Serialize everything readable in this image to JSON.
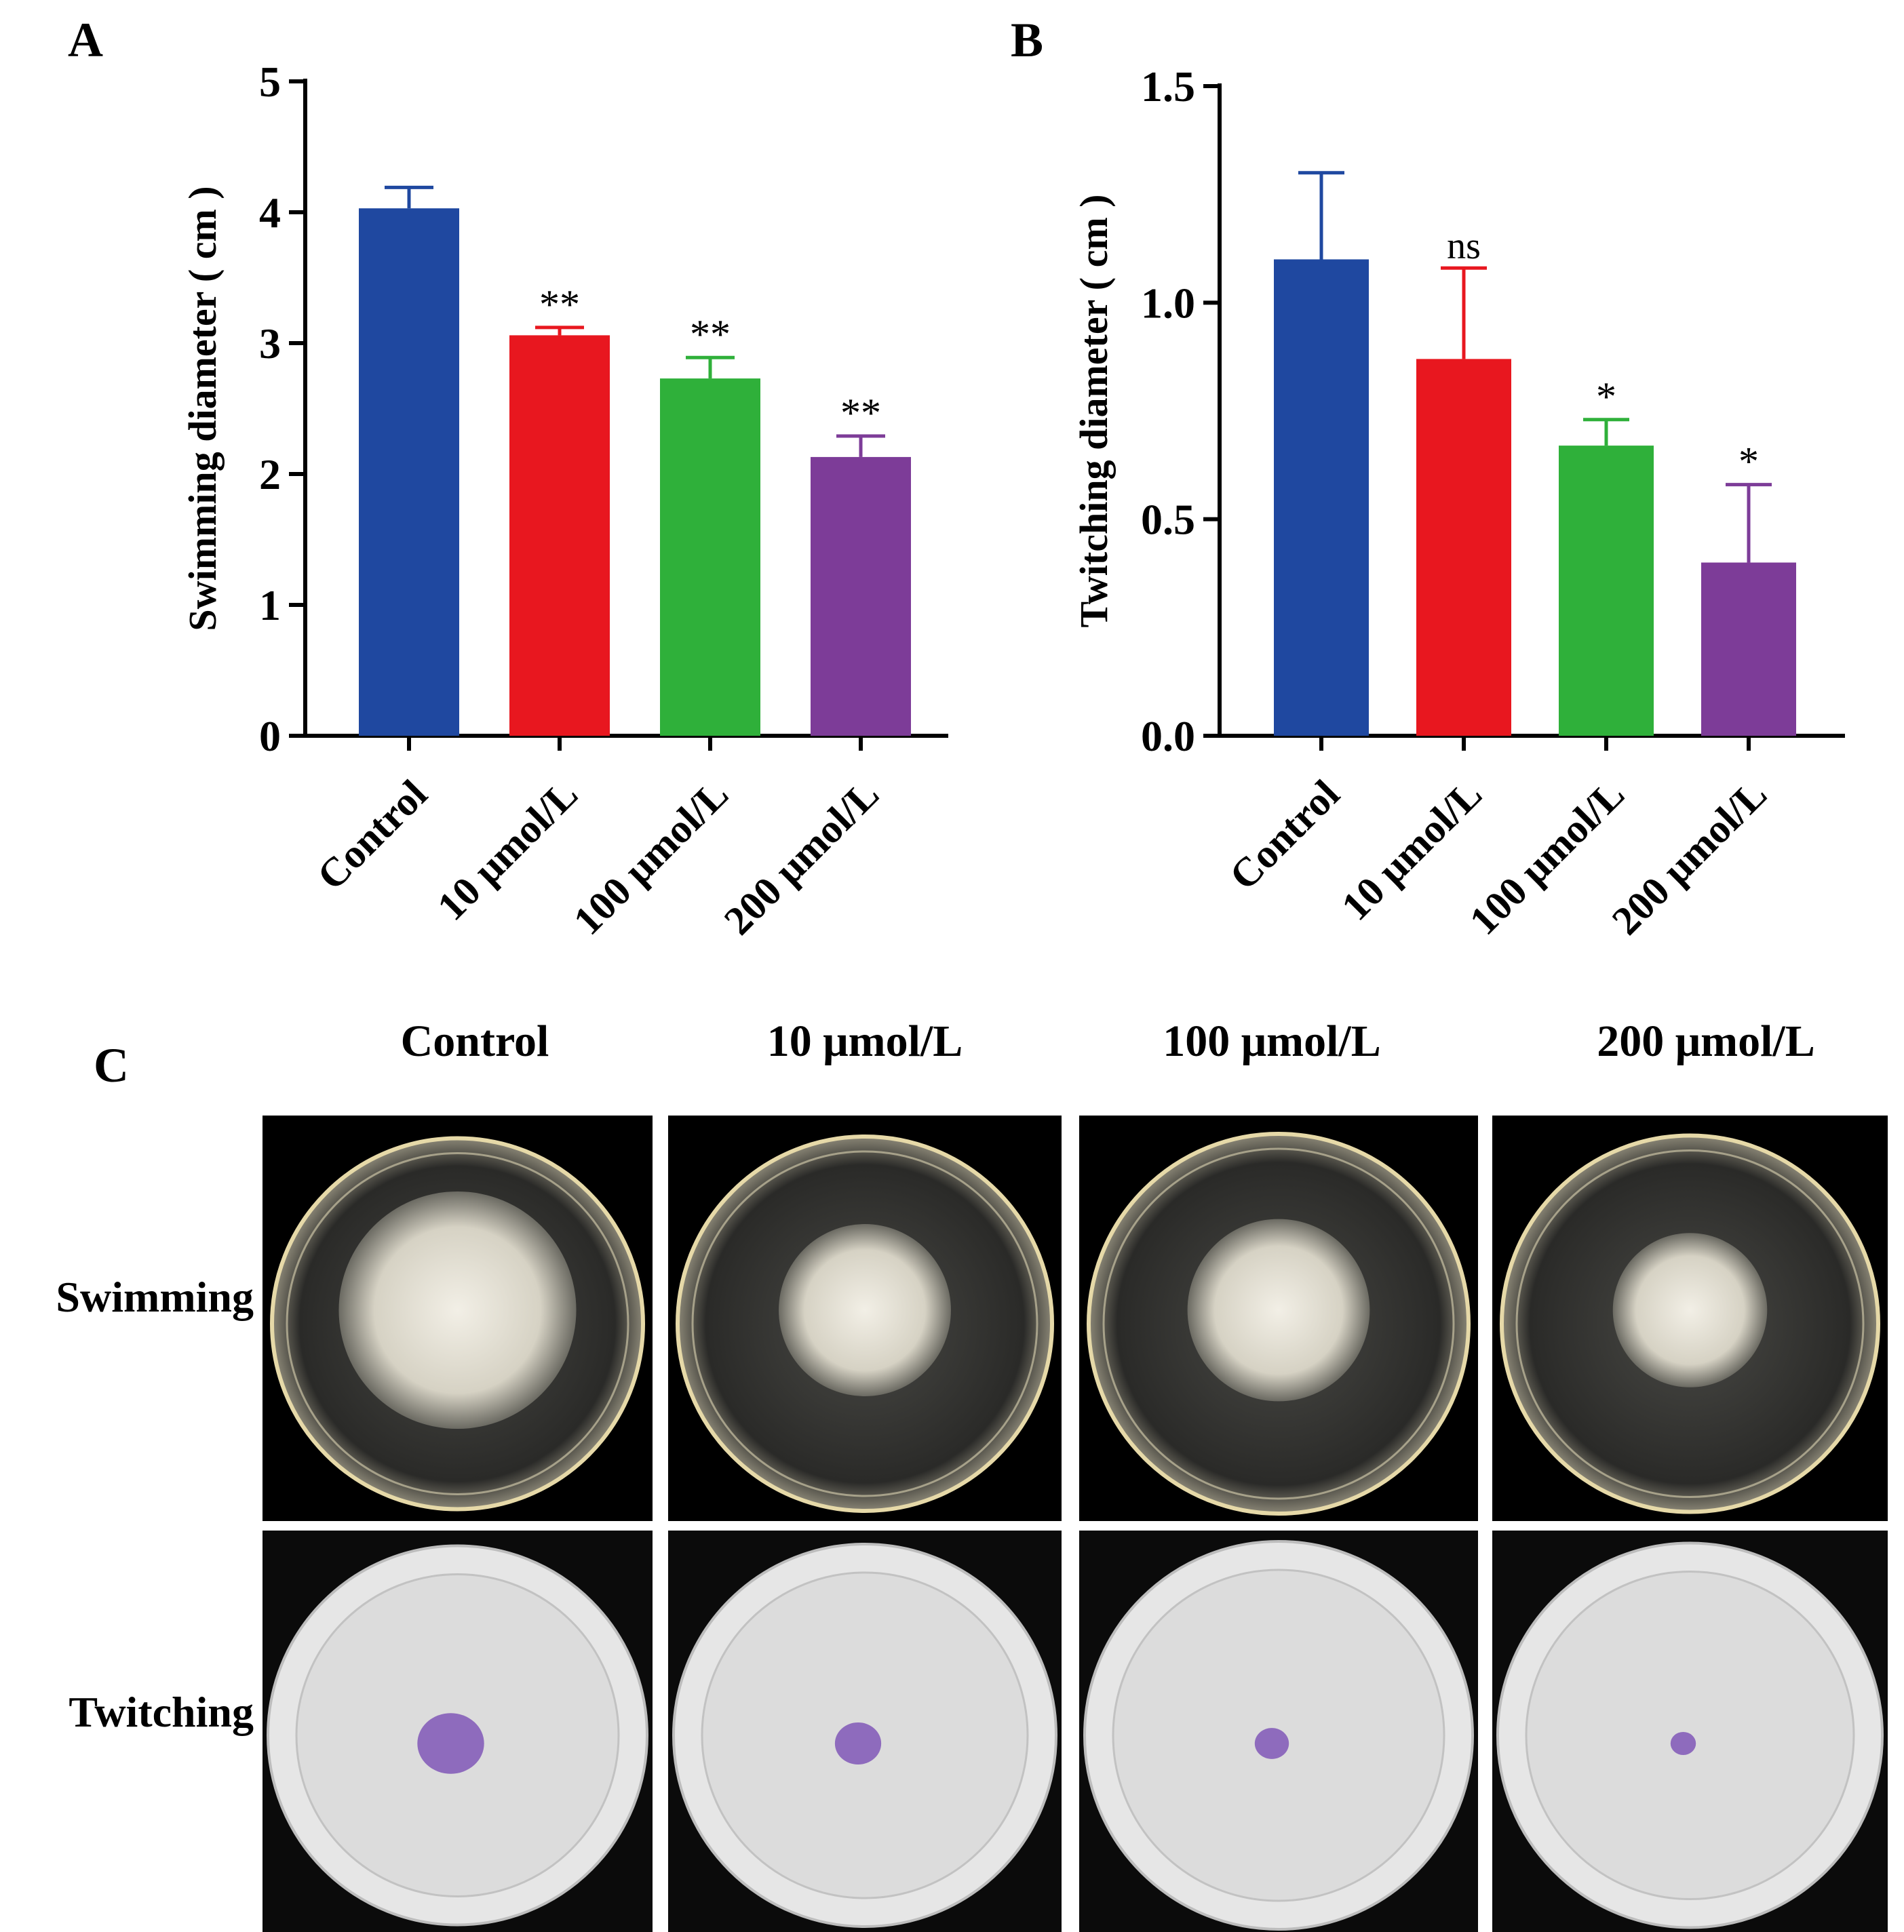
{
  "panels": {
    "a": "A",
    "b": "B",
    "c": "C"
  },
  "chart_data": [
    {
      "type": "bar",
      "panel": "A",
      "ylabel": "Swimming diameter ( cm )",
      "categories": [
        "Control",
        "10 μmol/L",
        "100 μmol/L",
        "200 μmol/L"
      ],
      "values": [
        4.03,
        3.06,
        2.73,
        2.13
      ],
      "errors": [
        0.16,
        0.06,
        0.16,
        0.16
      ],
      "significance": [
        "",
        "**",
        "**",
        "**"
      ],
      "ylim": [
        0,
        5
      ],
      "yticks": [
        "0",
        "1",
        "2",
        "3",
        "4",
        "5"
      ],
      "colors": [
        "#1f48a0",
        "#e8171f",
        "#2fb03a",
        "#7d3c98"
      ],
      "grid": false
    },
    {
      "type": "bar",
      "panel": "B",
      "ylabel": "Twitching  diameter ( cm )",
      "categories": [
        "Control",
        "10 μmol/L",
        "100 μmol/L",
        "200 μmol/L"
      ],
      "values": [
        1.1,
        0.87,
        0.67,
        0.4
      ],
      "errors": [
        0.2,
        0.21,
        0.06,
        0.18
      ],
      "significance": [
        "",
        "ns",
        "*",
        "*"
      ],
      "ylim": [
        0,
        1.5
      ],
      "yticks": [
        "0.0",
        "0.5",
        "1.0",
        "1.5"
      ],
      "colors": [
        "#1f48a0",
        "#e8171f",
        "#2fb03a",
        "#7d3c98"
      ],
      "grid": false
    }
  ],
  "photo_grid": {
    "columns": [
      "Control",
      "10 μmol/L",
      "100 μmol/L",
      "200 μmol/L"
    ],
    "rows": [
      "Swimming",
      "Twitching"
    ],
    "swimming_colony_relative_size": [
      0.64,
      0.46,
      0.48,
      0.41
    ],
    "twitching_stain_relative_size": [
      0.16,
      0.11,
      0.08,
      0.06
    ]
  }
}
